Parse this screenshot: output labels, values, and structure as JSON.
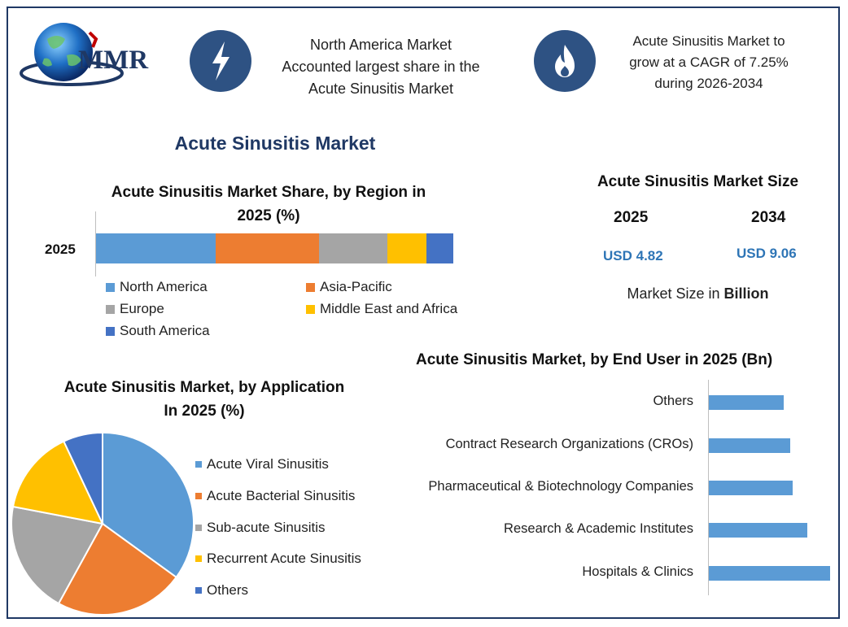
{
  "brand": {
    "logo_text": "MMR"
  },
  "highlights": [
    {
      "icon": "lightning-icon",
      "lines": [
        "North America Market",
        "Accounted largest share in the",
        "Acute Sinusitis Market"
      ]
    },
    {
      "icon": "flame-icon",
      "lines": [
        "Acute Sinusitis Market to",
        "grow at a CAGR of 7.25%",
        "during 2026-2034"
      ]
    }
  ],
  "main_title": "Acute Sinusitis Market",
  "market_size": {
    "title": "Acute Sinusitis Market Size",
    "years": [
      "2025",
      "2034"
    ],
    "values": [
      "USD 4.82",
      "USD 9.06"
    ],
    "note_prefix": "Market Size in ",
    "note_bold": "Billion"
  },
  "colors": {
    "blue": "#5b9bd5",
    "orange": "#ed7d31",
    "gray": "#a5a5a5",
    "yellow": "#ffc000",
    "dark_blue": "#4472c4",
    "navy": "#1f3864",
    "value_blue": "#2e75b6"
  },
  "chart_data": [
    {
      "type": "bar",
      "orientation": "horizontal-stacked",
      "title_lines": [
        "Acute Sinusitis Market Share, by Region in",
        "2025 (%)"
      ],
      "categories": [
        "2025"
      ],
      "series": [
        {
          "name": "North America",
          "values": [
            33.5
          ]
        },
        {
          "name": "Asia-Pacific",
          "values": [
            29
          ]
        },
        {
          "name": "Europe",
          "values": [
            19
          ]
        },
        {
          "name": "Middle East and Africa",
          "values": [
            11
          ]
        },
        {
          "name": "South America",
          "values": [
            7.5
          ]
        }
      ],
      "series_colors": [
        "#5b9bd5",
        "#ed7d31",
        "#a5a5a5",
        "#ffc000",
        "#4472c4"
      ],
      "xlim": [
        0,
        100
      ],
      "legend": "bottom"
    },
    {
      "type": "pie",
      "title_lines": [
        "Acute Sinusitis Market, by Application",
        "In 2025 (%)"
      ],
      "labels": [
        "Acute Viral Sinusitis",
        "Acute Bacterial Sinusitis",
        "Sub-acute Sinusitis",
        "Recurrent Acute Sinusitis",
        "Others"
      ],
      "values": [
        35,
        23,
        20,
        15,
        7
      ],
      "colors": [
        "#5b9bd5",
        "#ed7d31",
        "#a5a5a5",
        "#ffc000",
        "#4472c4"
      ],
      "legend": "right"
    },
    {
      "type": "bar",
      "orientation": "horizontal",
      "title": "Acute Sinusitis Market, by End User in 2025 (Bn)",
      "categories": [
        "Others",
        "Contract Research Organizations (CROs)",
        "Pharmaceutical & Biotechnology Companies",
        "Research & Academic Institutes",
        "Hospitals & Clinics"
      ],
      "values": [
        0.62,
        0.67,
        0.69,
        0.81,
        1.0
      ],
      "color": "#5b9bd5",
      "xlim": [
        0,
        1.0
      ],
      "grid": false
    }
  ]
}
